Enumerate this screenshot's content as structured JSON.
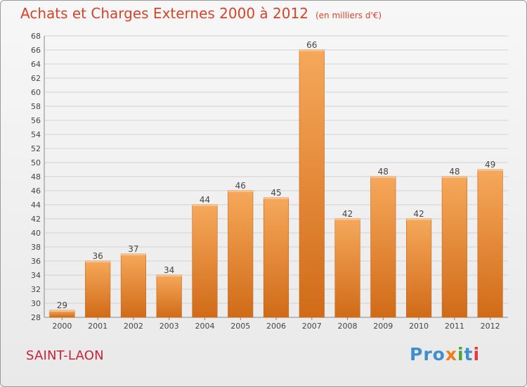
{
  "header": {
    "title": "Achats et Charges Externes 2000 à 2012",
    "subtitle": "(en milliers d'€)"
  },
  "footer": {
    "commune": "SAINT-LAON",
    "logo": {
      "p1": "Pro",
      "p2": "x",
      "p3": "i",
      "p4": "t",
      "p5": "i"
    }
  },
  "colors": {
    "bar_light": "#f6a85a",
    "bar_dark": "#d06b18",
    "title": "#d4442a",
    "commune": "#c6243a"
  },
  "chart_data": {
    "type": "bar",
    "title": "Achats et Charges Externes 2000 à 2012",
    "subtitle": "(en milliers d'€)",
    "categories": [
      "2000",
      "2001",
      "2002",
      "2003",
      "2004",
      "2005",
      "2006",
      "2007",
      "2008",
      "2009",
      "2010",
      "2011",
      "2012"
    ],
    "values": [
      29,
      36,
      37,
      34,
      44,
      46,
      45,
      66,
      42,
      48,
      42,
      48,
      49
    ],
    "ylim": [
      28,
      68
    ],
    "yticks": [
      28,
      30,
      32,
      34,
      36,
      38,
      40,
      42,
      44,
      46,
      48,
      50,
      52,
      54,
      56,
      58,
      60,
      62,
      64,
      66,
      68
    ],
    "grid": true,
    "data_labels": true,
    "xlabel": "",
    "ylabel": ""
  }
}
